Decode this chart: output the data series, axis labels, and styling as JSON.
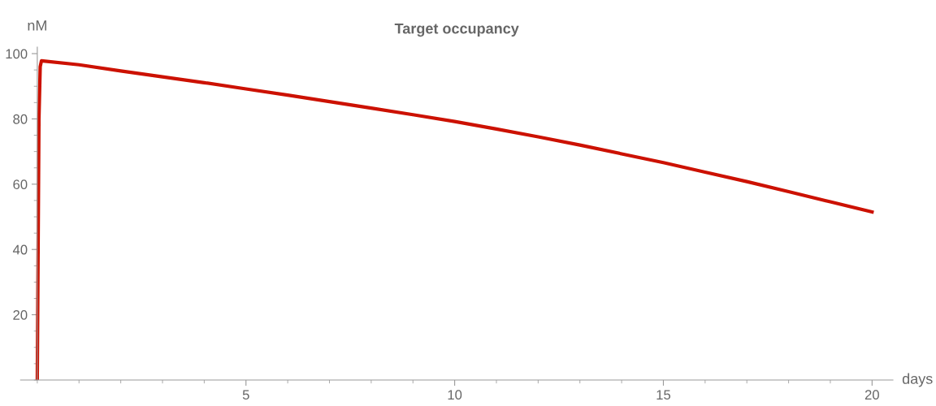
{
  "chart_data": {
    "type": "line",
    "title": "Target occupancy",
    "xlabel": "days",
    "ylabel": "nM",
    "series": [
      {
        "color": "#cc1100",
        "x": [
          0,
          0.02,
          0.04,
          0.07,
          0.1,
          1,
          2,
          3,
          4,
          5,
          6,
          7,
          8,
          9,
          10,
          11,
          12,
          13,
          14,
          15,
          16,
          17,
          18,
          19,
          20
        ],
        "values": [
          0,
          40,
          80,
          96,
          97.8,
          96.6,
          94.7,
          92.9,
          91.1,
          89.2,
          87.3,
          85.3,
          83.3,
          81.3,
          79.2,
          76.9,
          74.5,
          72,
          69.3,
          66.6,
          63.7,
          60.8,
          57.7,
          54.6,
          51.5
        ]
      }
    ],
    "xlim": [
      -0.4,
      20.5
    ],
    "ylim": [
      0,
      102
    ],
    "xticks": [
      5,
      10,
      15,
      20
    ],
    "yticks": [
      20,
      40,
      60,
      80,
      100
    ],
    "grid": false,
    "legend": false,
    "marker": "none",
    "line_style": "solid"
  }
}
